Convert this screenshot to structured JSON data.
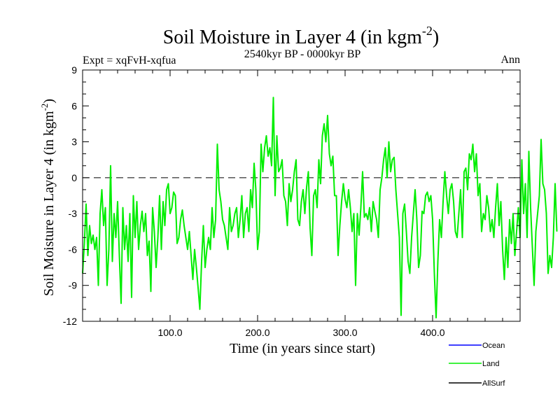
{
  "chart_data": {
    "type": "line",
    "title_main": "Soil Moisture in Layer 4 (in kgm",
    "title_sup": "-2",
    "title_close": ")",
    "subtitle": "2540kyr BP - 0000kyr BP",
    "expt_label": "Expt = xqFvH-xqfua",
    "season_label": "Ann",
    "xlabel": "Time (in years since start)",
    "ylabel_main": "Soil Moisture in Layer 4 (in kgm",
    "ylabel_sup": "-2",
    "ylabel_close": ")",
    "xlim": [
      0,
      500
    ],
    "ylim": [
      -12,
      9
    ],
    "x_ticks": [
      100,
      200,
      300,
      400
    ],
    "x_tick_labels": [
      "100.0",
      "200.0",
      "300.0",
      "400.0"
    ],
    "y_ticks": [
      -12,
      -9,
      -6,
      -3,
      0,
      3,
      6,
      9
    ],
    "y_tick_labels": [
      "-12",
      "-9",
      "-6",
      "-3",
      "0",
      "3",
      "6",
      "9"
    ],
    "reference_line": 0,
    "legend": [
      {
        "name": "Ocean",
        "color": "#0000ff"
      },
      {
        "name": "Land",
        "color": "#00ee00"
      },
      {
        "name": "AllSurf",
        "color": "#000000"
      }
    ],
    "series": [
      {
        "name": "Land",
        "color": "#00ee00",
        "step": 2,
        "values": [
          -8,
          -5.5,
          -2.2,
          -6.5,
          -4,
          -5.5,
          -4.8,
          -6,
          -5,
          -9,
          -3,
          -1,
          -4,
          -2.5,
          -9,
          -6,
          1,
          -7,
          -3,
          -5,
          -2,
          -6.5,
          -10.5,
          -2.5,
          -6,
          -4,
          -7,
          -3,
          -10,
          -1.5,
          -5,
          -2,
          -6,
          -4,
          -2.8,
          -4.5,
          -3,
          -6.5,
          -5.3,
          -9.5,
          -2.5,
          -4.5,
          -7.5,
          -5,
          -1.5,
          -6,
          -2,
          -4,
          -1,
          -0.5,
          -3,
          -2.5,
          -1.2,
          -1.5,
          -5.5,
          -5,
          -3.5,
          -2.7,
          -4,
          -5,
          -6,
          -4.5,
          -6.5,
          -8.5,
          -6,
          -7.5,
          -9.2,
          -11,
          -7,
          -4,
          -7.5,
          -6,
          -5,
          -6,
          -2.5,
          -5,
          -3.5,
          2.8,
          -1,
          -2,
          -3.5,
          -4,
          -5,
          -6,
          -2.5,
          -4.5,
          -4,
          -3,
          -2.5,
          -5,
          -3.5,
          -1.5,
          -5,
          -3,
          -2.5,
          -4.5,
          -1,
          -2.5,
          1.2,
          -1,
          -6,
          -4.5,
          2.8,
          0.5,
          2.5,
          3.5,
          1.8,
          2.5,
          1,
          6.7,
          -1.5,
          3.5,
          0.5,
          0.8,
          1.5,
          -1.5,
          -2,
          -4,
          -0.5,
          -2,
          -1,
          0.5,
          1.5,
          -3.5,
          -4,
          -2,
          -1,
          -3,
          -0.8,
          0.5,
          -4.2,
          -6.5,
          -1.5,
          -1,
          -2.5,
          1.5,
          -0.5,
          3.5,
          4.5,
          3,
          5.2,
          2,
          1,
          1.8,
          -1.5,
          -1.5,
          -6.5,
          -4,
          -2,
          -0.5,
          -1.8,
          -2.5,
          -1,
          -2.5,
          -4.5,
          -3,
          -9,
          -3,
          -4.8,
          -2.5,
          0.5,
          -3.3,
          -3,
          -3.5,
          -2.5,
          -4.5,
          -2,
          -2.8,
          -3.5,
          -5,
          -1,
          0,
          1.5,
          2.5,
          0,
          3,
          0.5,
          1.5,
          1.7,
          -1,
          -3,
          -5,
          -11.5,
          -3,
          -2.2,
          -4.5,
          -7,
          -8,
          -5,
          -3,
          -1,
          -3.5,
          -7.5,
          -6.5,
          -2.8,
          -3,
          -1.5,
          -1.2,
          -2,
          -1.5,
          -3.5,
          -8,
          -11.7,
          -7,
          -3.5,
          -5,
          -2,
          0.5,
          -1.5,
          -3,
          -1,
          -0.5,
          -2,
          -4.5,
          -5,
          -3,
          -1,
          -5,
          0.5,
          0.8,
          -1,
          2,
          1.5,
          2.8,
          0.5,
          2,
          -1.5,
          -0.5,
          -4.5,
          -3,
          -3.5,
          -1.5,
          -2.5,
          -4.5,
          -3.5,
          -5,
          -2.5,
          -0.5,
          -4,
          -2,
          -6,
          -8.5,
          -5,
          -7.5,
          -3.5,
          -5.5,
          -3,
          -6.5,
          -4.5,
          -2.5,
          -5,
          1.5,
          -3,
          -0.5,
          -5,
          2.2,
          -2.5,
          -5.8,
          -9,
          -4.5,
          -3,
          -1.5,
          3.2,
          -0.5,
          -1,
          -3,
          -8,
          -6.5,
          -7.5,
          -5,
          -0.5,
          -4.5
        ]
      }
    ]
  }
}
